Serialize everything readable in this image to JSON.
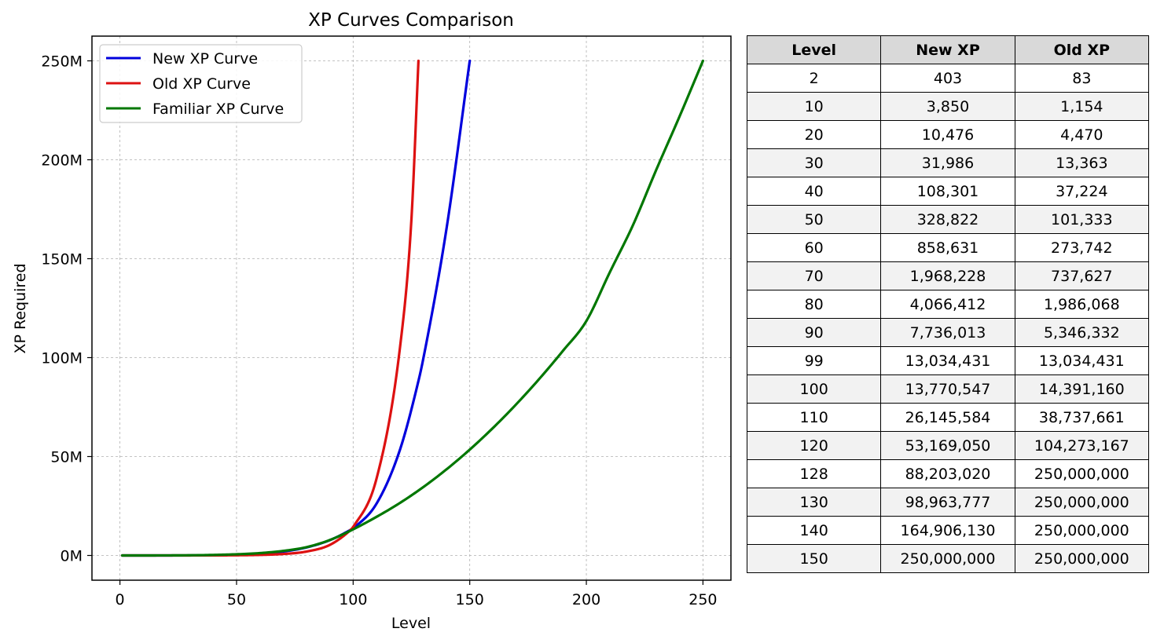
{
  "chart_data": {
    "type": "line",
    "title": "XP Curves Comparison",
    "xlabel": "Level",
    "ylabel": "XP Required",
    "xlim": [
      -12,
      262
    ],
    "ylim": [
      -12500000,
      262500000
    ],
    "x_ticks": [
      0,
      50,
      100,
      150,
      200,
      250
    ],
    "y_ticks": [
      0,
      50000000,
      100000000,
      150000000,
      200000000,
      250000000
    ],
    "y_tick_labels": [
      "0M",
      "50M",
      "100M",
      "150M",
      "200M",
      "250M"
    ],
    "grid": true,
    "legend_position": "top-left",
    "series": [
      {
        "name": "New XP Curve",
        "color": "#0000dd",
        "x": [
          1,
          2,
          10,
          20,
          30,
          40,
          50,
          60,
          70,
          80,
          90,
          99,
          100,
          110,
          120,
          128,
          130,
          140,
          150
        ],
        "y": [
          0,
          403,
          3850,
          10476,
          31986,
          108301,
          328822,
          858631,
          1968228,
          4066412,
          7736013,
          13034431,
          13770547,
          26145584,
          53169050,
          88203020,
          98963777,
          164906130,
          250000000
        ]
      },
      {
        "name": "Old XP Curve",
        "color": "#dd1111",
        "x": [
          1,
          2,
          10,
          20,
          30,
          40,
          50,
          60,
          70,
          80,
          90,
          99,
          100,
          110,
          120,
          125,
          128
        ],
        "y": [
          0,
          83,
          1154,
          4470,
          13363,
          37224,
          101333,
          273742,
          737627,
          1986068,
          5346332,
          13034431,
          14391160,
          38737661,
          104273167,
          170000000,
          250000000
        ]
      },
      {
        "name": "Familiar XP Curve",
        "color": "#007700",
        "x": [
          1,
          25,
          50,
          60,
          70,
          80,
          90,
          100,
          110,
          120,
          130,
          140,
          150,
          160,
          170,
          180,
          190,
          200,
          210,
          220,
          230,
          240,
          250
        ],
        "y": [
          0,
          50000,
          600000,
          1200000,
          2300000,
          4200000,
          7800000,
          13200000,
          19500000,
          26500000,
          34500000,
          43500000,
          53500000,
          64500000,
          76500000,
          89500000,
          103500000,
          118500000,
          143000000,
          167000000,
          195000000,
          222000000,
          250000000
        ]
      }
    ]
  },
  "table": {
    "headers": [
      "Level",
      "New XP",
      "Old XP"
    ],
    "rows": [
      [
        "2",
        "403",
        "83"
      ],
      [
        "10",
        "3,850",
        "1,154"
      ],
      [
        "20",
        "10,476",
        "4,470"
      ],
      [
        "30",
        "31,986",
        "13,363"
      ],
      [
        "40",
        "108,301",
        "37,224"
      ],
      [
        "50",
        "328,822",
        "101,333"
      ],
      [
        "60",
        "858,631",
        "273,742"
      ],
      [
        "70",
        "1,968,228",
        "737,627"
      ],
      [
        "80",
        "4,066,412",
        "1,986,068"
      ],
      [
        "90",
        "7,736,013",
        "5,346,332"
      ],
      [
        "99",
        "13,034,431",
        "13,034,431"
      ],
      [
        "100",
        "13,770,547",
        "14,391,160"
      ],
      [
        "110",
        "26,145,584",
        "38,737,661"
      ],
      [
        "120",
        "53,169,050",
        "104,273,167"
      ],
      [
        "128",
        "88,203,020",
        "250,000,000"
      ],
      [
        "130",
        "98,963,777",
        "250,000,000"
      ],
      [
        "140",
        "164,906,130",
        "250,000,000"
      ],
      [
        "150",
        "250,000,000",
        "250,000,000"
      ]
    ]
  }
}
